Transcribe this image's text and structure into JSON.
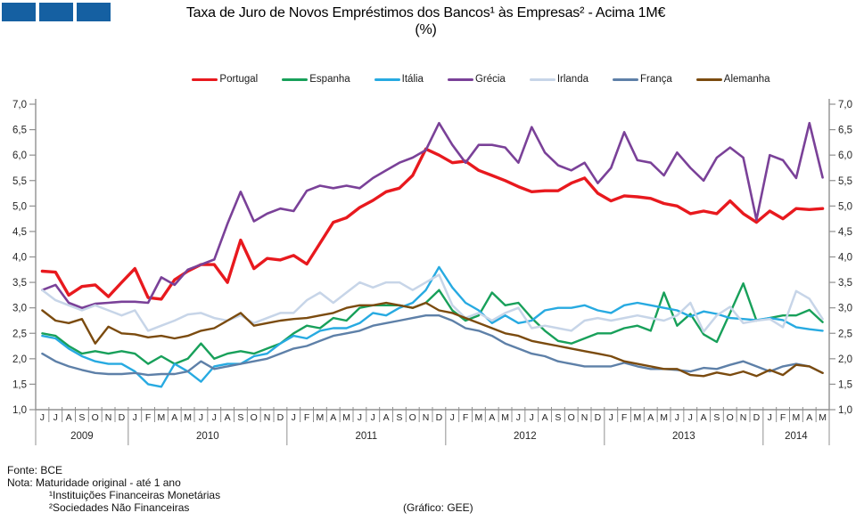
{
  "header": {
    "logo_color": "#1560A2",
    "logo_squares": 3,
    "title_line1": "Taxa de Juro de Novos Empréstimos dos Bancos¹ às Empresas² - Acima 1M€",
    "title_line2": "(%)"
  },
  "footer": {
    "fonte": "Fonte: BCE",
    "nota": "Nota: Maturidade original - até 1 ano",
    "nota_sup1": "¹Instituições Financeiras Monetárias",
    "nota_sup2": "²Sociedades Não Financeiras",
    "grafico": "(Gráfico: GEE)"
  },
  "chart_data": {
    "type": "line",
    "title": "Taxa de Juro de Novos Empréstimos dos Bancos às Empresas - Acima 1M€ (%)",
    "unit": "%",
    "grid": false,
    "legend_position": "top",
    "axis_color": "#909090",
    "label_color": "#262626",
    "y_axis": {
      "min": 1.0,
      "max": 7.0,
      "step": 0.5,
      "decimal_separator": ","
    },
    "x_axis": {
      "year_groups": [
        {
          "year": "2009",
          "months": [
            "J",
            "J",
            "A",
            "S",
            "O",
            "N",
            "D"
          ]
        },
        {
          "year": "2010",
          "months": [
            "J",
            "F",
            "M",
            "A",
            "M",
            "J",
            "J",
            "A",
            "S",
            "O",
            "N",
            "D"
          ]
        },
        {
          "year": "2011",
          "months": [
            "J",
            "F",
            "M",
            "A",
            "M",
            "J",
            "J",
            "A",
            "S",
            "O",
            "N",
            "D"
          ]
        },
        {
          "year": "2012",
          "months": [
            "J",
            "F",
            "M",
            "A",
            "M",
            "J",
            "J",
            "A",
            "S",
            "O",
            "N",
            "D"
          ]
        },
        {
          "year": "2013",
          "months": [
            "J",
            "F",
            "M",
            "A",
            "M",
            "J",
            "J",
            "A",
            "S",
            "O",
            "N",
            "D"
          ]
        },
        {
          "year": "2014",
          "months": [
            "J",
            "F",
            "M",
            "A",
            "M"
          ]
        }
      ]
    },
    "series": [
      {
        "name": "Portugal",
        "color": "#E8191E",
        "width": 3.4,
        "values": [
          3.72,
          3.7,
          3.25,
          3.42,
          3.45,
          3.22,
          3.5,
          3.77,
          3.2,
          3.17,
          3.55,
          3.72,
          3.85,
          3.85,
          3.5,
          4.33,
          3.77,
          3.97,
          3.94,
          4.03,
          3.86,
          4.27,
          4.68,
          4.77,
          4.97,
          5.11,
          5.28,
          5.35,
          5.6,
          6.12,
          6.0,
          5.85,
          5.88,
          5.7,
          5.6,
          5.5,
          5.38,
          5.28,
          5.3,
          5.3,
          5.45,
          5.55,
          5.25,
          5.1,
          5.2,
          5.18,
          5.15,
          5.05,
          5.0,
          4.85,
          4.9,
          4.85,
          5.1,
          4.85,
          4.68,
          4.9,
          4.75,
          4.95,
          4.93,
          4.95
        ]
      },
      {
        "name": "Espanha",
        "color": "#18A05A",
        "width": 2.4,
        "values": [
          2.5,
          2.45,
          2.25,
          2.1,
          2.15,
          2.1,
          2.15,
          2.1,
          1.9,
          2.05,
          1.9,
          2.0,
          2.3,
          2.0,
          2.1,
          2.15,
          2.1,
          2.2,
          2.3,
          2.5,
          2.65,
          2.6,
          2.8,
          2.75,
          3.0,
          3.05,
          3.05,
          3.05,
          3.0,
          3.1,
          3.35,
          2.95,
          2.75,
          2.85,
          3.3,
          3.05,
          3.1,
          2.8,
          2.55,
          2.35,
          2.3,
          2.4,
          2.5,
          2.5,
          2.6,
          2.65,
          2.55,
          3.3,
          2.65,
          2.88,
          2.48,
          2.33,
          2.9,
          3.48,
          2.75,
          2.8,
          2.85,
          2.85,
          2.96,
          2.72
        ]
      },
      {
        "name": "Itália",
        "color": "#27AAE1",
        "width": 2.4,
        "values": [
          2.45,
          2.4,
          2.2,
          2.05,
          1.95,
          1.9,
          1.9,
          1.75,
          1.5,
          1.45,
          1.9,
          1.75,
          1.55,
          1.85,
          1.9,
          1.9,
          2.05,
          2.1,
          2.3,
          2.45,
          2.4,
          2.55,
          2.6,
          2.6,
          2.7,
          2.9,
          2.85,
          3.0,
          3.1,
          3.35,
          3.8,
          3.4,
          3.1,
          2.95,
          2.7,
          2.85,
          2.7,
          2.75,
          2.95,
          3.0,
          3.0,
          3.05,
          2.95,
          2.9,
          3.05,
          3.1,
          3.05,
          3.0,
          2.95,
          2.83,
          2.93,
          2.88,
          2.8,
          2.78,
          2.76,
          2.8,
          2.76,
          2.62,
          2.58,
          2.55
        ]
      },
      {
        "name": "Grécia",
        "color": "#7A4198",
        "width": 2.6,
        "values": [
          3.35,
          3.45,
          3.1,
          3.0,
          3.08,
          3.1,
          3.12,
          3.12,
          3.1,
          3.6,
          3.45,
          3.75,
          3.85,
          3.95,
          4.65,
          5.28,
          4.7,
          4.85,
          4.95,
          4.9,
          5.3,
          5.4,
          5.35,
          5.4,
          5.35,
          5.55,
          5.7,
          5.85,
          5.95,
          6.1,
          6.63,
          6.2,
          5.85,
          6.2,
          6.2,
          6.15,
          5.85,
          6.55,
          6.05,
          5.8,
          5.7,
          5.85,
          5.45,
          5.75,
          6.45,
          5.9,
          5.85,
          5.6,
          6.05,
          5.75,
          5.5,
          5.95,
          6.15,
          5.95,
          4.73,
          6.0,
          5.9,
          5.55,
          6.63,
          5.56
        ]
      },
      {
        "name": "Irlanda",
        "color": "#C7D5E8",
        "width": 2.5,
        "values": [
          3.35,
          3.15,
          3.05,
          2.95,
          3.05,
          2.95,
          2.85,
          2.95,
          2.55,
          2.65,
          2.75,
          2.87,
          2.9,
          2.8,
          2.75,
          2.85,
          2.7,
          2.8,
          2.9,
          2.9,
          3.15,
          3.3,
          3.1,
          3.3,
          3.5,
          3.4,
          3.5,
          3.5,
          3.35,
          3.5,
          3.65,
          3.05,
          2.8,
          2.9,
          2.75,
          2.9,
          3.0,
          2.6,
          2.65,
          2.6,
          2.55,
          2.75,
          2.8,
          2.75,
          2.8,
          2.85,
          2.8,
          2.75,
          2.85,
          3.1,
          2.53,
          2.85,
          3.02,
          2.7,
          2.75,
          2.78,
          2.62,
          3.33,
          3.18,
          2.78
        ]
      },
      {
        "name": "França",
        "color": "#5E80A8",
        "width": 2.4,
        "values": [
          2.1,
          1.95,
          1.85,
          1.78,
          1.72,
          1.7,
          1.7,
          1.72,
          1.68,
          1.7,
          1.7,
          1.75,
          1.95,
          1.8,
          1.85,
          1.9,
          1.95,
          2.0,
          2.1,
          2.2,
          2.25,
          2.35,
          2.45,
          2.5,
          2.55,
          2.65,
          2.7,
          2.75,
          2.8,
          2.85,
          2.85,
          2.75,
          2.6,
          2.55,
          2.45,
          2.3,
          2.2,
          2.1,
          2.05,
          1.95,
          1.9,
          1.85,
          1.85,
          1.85,
          1.92,
          1.85,
          1.8,
          1.8,
          1.78,
          1.75,
          1.82,
          1.8,
          1.88,
          1.95,
          1.85,
          1.75,
          1.85,
          1.9,
          1.85,
          1.72
        ]
      },
      {
        "name": "Alemanha",
        "color": "#7B4B0F",
        "width": 2.4,
        "values": [
          2.95,
          2.75,
          2.7,
          2.78,
          2.3,
          2.63,
          2.5,
          2.48,
          2.42,
          2.45,
          2.4,
          2.45,
          2.55,
          2.6,
          2.75,
          2.9,
          2.65,
          2.7,
          2.75,
          2.78,
          2.8,
          2.85,
          2.9,
          3.0,
          3.05,
          3.05,
          3.1,
          3.05,
          3.0,
          3.1,
          2.95,
          2.9,
          2.8,
          2.7,
          2.6,
          2.5,
          2.45,
          2.35,
          2.3,
          2.25,
          2.2,
          2.15,
          2.1,
          2.05,
          1.95,
          1.9,
          1.85,
          1.8,
          1.8,
          1.68,
          1.66,
          1.73,
          1.68,
          1.75,
          1.66,
          1.78,
          1.68,
          1.88,
          1.85,
          1.72
        ]
      }
    ]
  }
}
